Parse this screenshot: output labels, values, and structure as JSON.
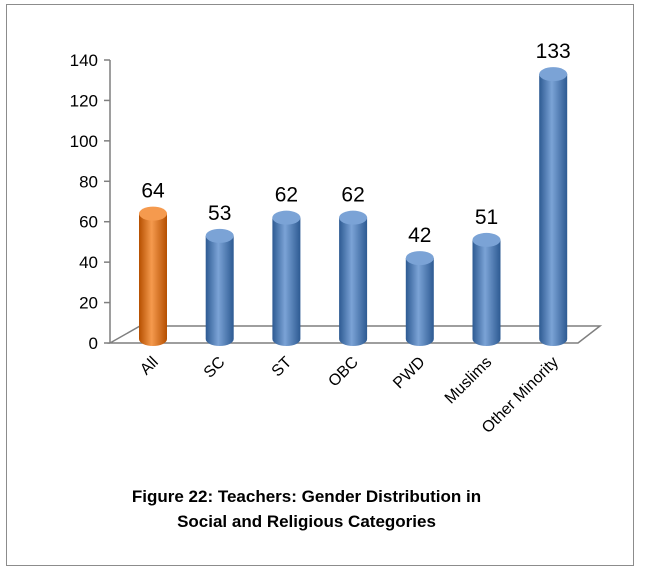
{
  "chart_data": {
    "type": "bar",
    "categories": [
      "All",
      "SC",
      "ST",
      "OBC",
      "PWD",
      "Muslims",
      "Other Minority"
    ],
    "values": [
      64,
      53,
      62,
      62,
      42,
      51,
      133
    ],
    "data_labels": [
      "64",
      "53",
      "62",
      "62",
      "42",
      "51",
      "133"
    ],
    "yticks": [
      "0",
      "20",
      "40",
      "60",
      "80",
      "100",
      "120",
      "140"
    ],
    "ylim": [
      0,
      140
    ],
    "title_line1": "Figure 22: Teachers: Gender Distribution in",
    "title_line2": "Social and Religious Categories",
    "colors": {
      "highlight": "#E36C0A",
      "highlight_dark": "#B54F00",
      "highlight_light": "#F59A4E",
      "bar": "#4F81BD",
      "bar_dark": "#2D5A92",
      "bar_light": "#7BA3D6"
    },
    "grid": false,
    "legend": "none"
  }
}
